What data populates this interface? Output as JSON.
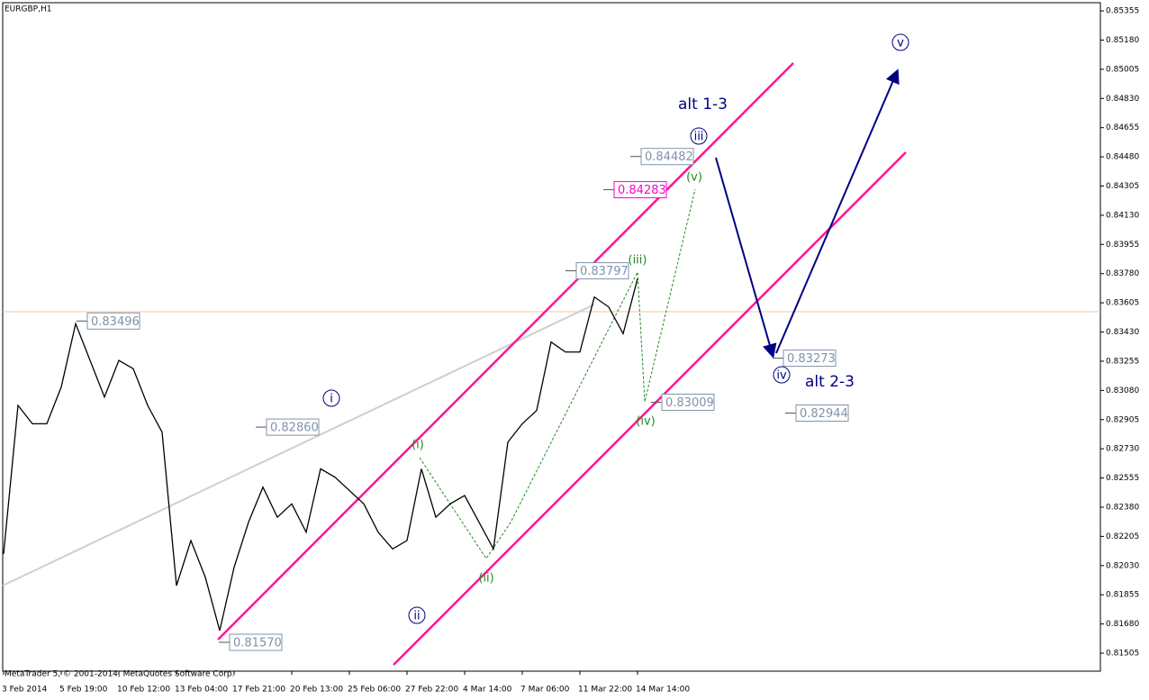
{
  "chart_data": {
    "type": "line",
    "title": "EURGBP,H1",
    "footer": "MetaTrader 5, © 2001-2014, MetaQuotes Software Corp.",
    "categories": [
      "3 Feb 2014",
      null,
      null,
      null,
      "5 Feb 19:00",
      null,
      null,
      null,
      "10 Feb 12:00",
      null,
      null,
      null,
      "13 Feb 04:00",
      null,
      null,
      null,
      "17 Feb 21:00",
      null,
      null,
      null,
      "20 Feb 13:00",
      null,
      null,
      null,
      "25 Feb 06:00",
      null,
      null,
      null,
      "27 Feb 22:00",
      null,
      null,
      null,
      "4 Mar 14:00",
      null,
      null,
      null,
      "7 Mar 06:00",
      null,
      null,
      null,
      "11 Mar 22:00",
      null,
      null,
      null,
      "14 Mar 14:00"
    ],
    "series": [
      {
        "name": "EURGBP",
        "color": "#000000",
        "values": [
          0.821,
          0.8299,
          0.8288,
          0.8288,
          0.831,
          0.8348,
          0.8326,
          0.8304,
          0.8326,
          0.8321,
          0.8299,
          0.8283,
          0.8191,
          0.8218,
          0.8196,
          0.8164,
          0.8202,
          0.8229,
          0.825,
          0.8232,
          0.824,
          0.8223,
          0.8261,
          0.8256,
          0.8248,
          0.824,
          0.8223,
          0.8213,
          0.8218,
          0.8261,
          0.8232,
          0.824,
          0.8245,
          0.8229,
          0.8213,
          0.8277,
          0.8288,
          0.8296,
          0.8337,
          0.8331,
          0.8331,
          0.8364,
          0.8358,
          0.8342,
          0.8375
        ]
      }
    ],
    "ylim": [
      0.81397,
      0.85404
    ],
    "yticks": [
      0.85355,
      {
        "value": 0.8518,
        "label": "0.85180"
      },
      0.85005,
      {
        "value": 0.8483,
        "label": "0.84830"
      },
      0.84655,
      {
        "value": 0.8448,
        "label": "0.84480"
      },
      0.84305,
      {
        "value": 0.8413,
        "label": "0.84130"
      },
      0.83955,
      {
        "value": 0.8378,
        "label": "0.83780"
      },
      0.83605,
      {
        "value": 0.8343,
        "label": "0.83430"
      },
      0.83255,
      {
        "value": 0.8308,
        "label": "0.83080"
      },
      0.82905,
      {
        "value": 0.8273,
        "label": "0.82730"
      },
      0.82555,
      {
        "value": 0.8238,
        "label": "0.82380"
      },
      0.82205,
      {
        "value": 0.8203,
        "label": "0.82030"
      },
      0.81855,
      {
        "value": 0.8168,
        "label": "0.81680"
      },
      0.81505
    ],
    "price_labels": [
      {
        "value": 0.83496,
        "label": "0.83496"
      },
      {
        "value": 0.8286,
        "label": "0.82860"
      },
      {
        "value": 0.8157,
        "label": "0.81570"
      },
      {
        "value": 0.84482,
        "label": "0.84482"
      },
      {
        "value": 0.84283,
        "label": "0.84283",
        "color": "#ff00cc"
      },
      {
        "value": 0.83797,
        "label": "0.83797"
      },
      {
        "value": 0.83009,
        "label": "0.83009"
      },
      {
        "value": 0.83273,
        "label": "0.83273"
      },
      {
        "value": 0.82944,
        "label": "0.82944"
      }
    ],
    "waves": [
      {
        "label": "i",
        "color": "#000080"
      },
      {
        "label": "ii",
        "color": "#000080"
      },
      {
        "label": "iii",
        "color": "#000080"
      },
      {
        "label": "iv",
        "color": "#000080"
      },
      {
        "label": "v",
        "color": "#000080"
      },
      {
        "label": "(i)",
        "color": "#228b22"
      },
      {
        "label": "(ii)",
        "color": "#228b22"
      },
      {
        "label": "(iii)",
        "color": "#228b22"
      },
      {
        "label": "(iv)",
        "color": "#228b22"
      },
      {
        "label": "(v)",
        "color": "#228b22"
      }
    ],
    "annotations": [
      "alt 1-3",
      "alt 2-3"
    ]
  }
}
